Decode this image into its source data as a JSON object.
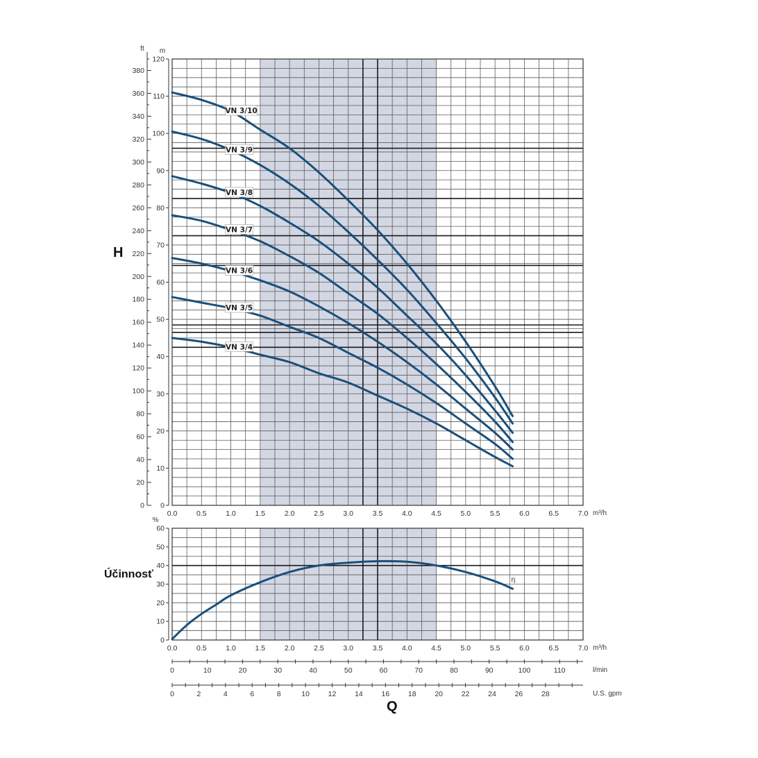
{
  "chart_data": [
    {
      "type": "line",
      "ylabel": "H",
      "y_unit": "m",
      "y2_unit": "ft",
      "x_unit": "m³/h",
      "xlim": [
        0,
        7.0
      ],
      "ylim": [
        0,
        120
      ],
      "y2lim": [
        0,
        390
      ],
      "x_ticks": [
        "0.0",
        "0.5",
        "1.0",
        "1.5",
        "2.0",
        "2.5",
        "3.0",
        "3.5",
        "4.0",
        "4.5",
        "5.0",
        "5.5",
        "6.0",
        "6.5",
        "7.0"
      ],
      "y_ticks": [
        "0",
        "10",
        "20",
        "30",
        "40",
        "50",
        "60",
        "70",
        "80",
        "90",
        "100",
        "110",
        "120"
      ],
      "y2_ticks": [
        "0",
        "20",
        "40",
        "60",
        "80",
        "100",
        "120",
        "140",
        "160",
        "180",
        "200",
        "220",
        "240",
        "260",
        "280",
        "300",
        "320",
        "340",
        "360",
        "380"
      ],
      "grid": true,
      "highlight_band": [
        1.5,
        4.5
      ],
      "vertical_lines": [
        3.25,
        3.5
      ],
      "series": [
        {
          "name": "VN 3/10",
          "x": [
            0,
            0.5,
            1.0,
            1.5,
            2.0,
            2.5,
            3.0,
            3.5,
            4.0,
            4.5,
            5.0,
            5.5,
            5.8
          ],
          "y": [
            111,
            109,
            106,
            101,
            96,
            89.5,
            82,
            74,
            65,
            55,
            44,
            32,
            24
          ]
        },
        {
          "name": "VN 3/9",
          "x": [
            0,
            0.5,
            1.0,
            1.5,
            2.0,
            2.5,
            3.0,
            3.5,
            4.0,
            4.5,
            5.0,
            5.5,
            5.8
          ],
          "y": [
            100.5,
            98.5,
            95.5,
            91.5,
            86.5,
            80.5,
            73.5,
            66,
            58,
            49,
            39.5,
            29,
            22
          ]
        },
        {
          "name": "VN 3/8",
          "x": [
            0,
            0.5,
            1.0,
            1.5,
            2.0,
            2.5,
            3.0,
            3.5,
            4.0,
            4.5,
            5.0,
            5.5,
            5.8
          ],
          "y": [
            88.5,
            86.5,
            84,
            80.5,
            76,
            71,
            65,
            58.5,
            51,
            43.5,
            35,
            25.5,
            19.5
          ]
        },
        {
          "name": "VN 3/7",
          "x": [
            0,
            0.5,
            1.0,
            1.5,
            2.0,
            2.5,
            3.0,
            3.5,
            4.0,
            4.5,
            5.0,
            5.5,
            5.8
          ],
          "y": [
            78,
            76.5,
            74,
            71,
            67,
            62.5,
            57,
            51.5,
            45,
            38,
            30.5,
            22.5,
            17
          ]
        },
        {
          "name": "VN 3/6",
          "x": [
            0,
            0.5,
            1.0,
            1.5,
            2.0,
            2.5,
            3.0,
            3.5,
            4.0,
            4.5,
            5.0,
            5.5,
            5.8
          ],
          "y": [
            66.5,
            65,
            63,
            60.5,
            57.5,
            53.5,
            49,
            44,
            38.5,
            32.5,
            26,
            19.5,
            15
          ]
        },
        {
          "name": "VN 3/5",
          "x": [
            0,
            0.5,
            1.0,
            1.5,
            2.0,
            2.5,
            3.0,
            3.5,
            4.0,
            4.5,
            5.0,
            5.5,
            5.8
          ],
          "y": [
            56,
            54.5,
            53,
            51,
            48,
            45,
            41,
            37,
            32.5,
            27.5,
            22,
            16.5,
            12.5
          ]
        },
        {
          "name": "VN 3/4",
          "x": [
            0,
            0.5,
            1.0,
            1.5,
            2.0,
            2.5,
            3.0,
            3.5,
            4.0,
            4.5,
            5.0,
            5.5,
            5.8
          ],
          "y": [
            45,
            44,
            42.5,
            40.5,
            38.5,
            35.5,
            33,
            29.5,
            26,
            22,
            17.5,
            13,
            10.5
          ]
        }
      ]
    },
    {
      "type": "line",
      "ylabel": "Účinnosť",
      "y_unit": "%",
      "x_unit": "m³/h",
      "xlim": [
        0,
        7.0
      ],
      "ylim": [
        0,
        60
      ],
      "x_ticks": [
        "0.0",
        "0.5",
        "1.0",
        "1.5",
        "2.0",
        "2.5",
        "3.0",
        "3.5",
        "4.0",
        "4.5",
        "5.0",
        "5.5",
        "6.0",
        "6.5",
        "7.0"
      ],
      "y_ticks": [
        "0",
        "10",
        "20",
        "30",
        "40",
        "50",
        "60"
      ],
      "grid": true,
      "highlight_band": [
        1.5,
        4.5
      ],
      "vertical_lines": [
        3.25,
        3.5
      ],
      "series": [
        {
          "name": "η",
          "x": [
            0,
            0.25,
            0.5,
            0.75,
            1.0,
            1.5,
            2.0,
            2.5,
            3.0,
            3.5,
            4.0,
            4.5,
            5.0,
            5.5,
            5.8
          ],
          "y": [
            0.5,
            8,
            14,
            19,
            24,
            31,
            36.5,
            40,
            41.5,
            42.3,
            42,
            40,
            36.5,
            31.5,
            27.5
          ]
        }
      ]
    },
    {
      "type": "line",
      "xlabel": "Q",
      "secondary_axes": [
        {
          "unit": "l/min",
          "max": 116.67,
          "ticks": [
            "0",
            "10",
            "20",
            "30",
            "40",
            "50",
            "60",
            "70",
            "80",
            "90",
            "100",
            "110"
          ]
        },
        {
          "unit": "U.S. gpm",
          "max": 30.82,
          "ticks": [
            "0",
            "2",
            "4",
            "6",
            "8",
            "10",
            "12",
            "14",
            "16",
            "18",
            "20",
            "22",
            "24",
            "26",
            "28"
          ]
        }
      ]
    }
  ]
}
